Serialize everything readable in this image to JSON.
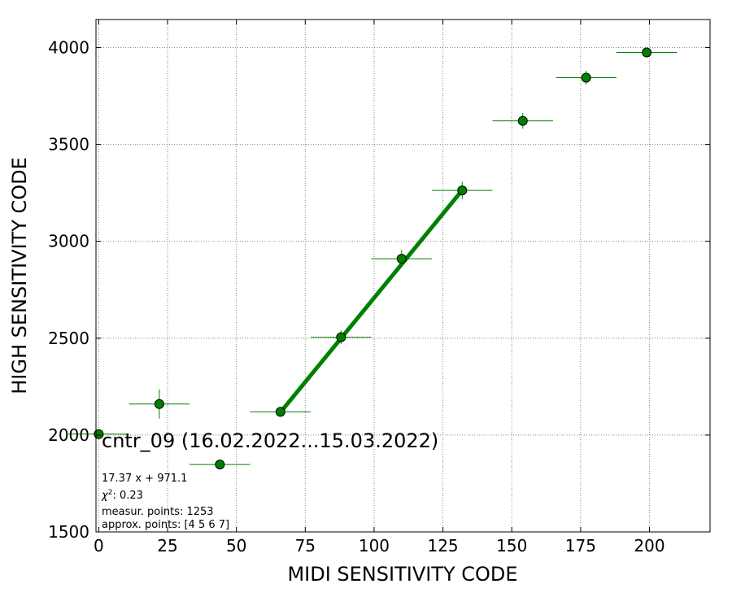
{
  "chart_data": {
    "type": "scatter",
    "xlabel": "MIDI SENSITIVITY CODE",
    "ylabel": "HIGH SENSITIVITY CODE",
    "xlim": [
      -1,
      222
    ],
    "ylim": [
      1500,
      4145
    ],
    "x_ticks": [
      0,
      25,
      50,
      75,
      100,
      125,
      150,
      175,
      200
    ],
    "y_ticks": [
      1500,
      2000,
      2500,
      3000,
      3500,
      4000
    ],
    "grid": true,
    "color": "#008000",
    "series": [
      {
        "points": [
          {
            "x": 0,
            "y": 2005,
            "xerr": 11,
            "yerr": 12
          },
          {
            "x": 22,
            "y": 2160,
            "xerr": 11,
            "yerr": 75
          },
          {
            "x": 44,
            "y": 1848,
            "xerr": 11,
            "yerr": 15
          },
          {
            "x": 66,
            "y": 2120,
            "xerr": 11,
            "yerr": 20
          },
          {
            "x": 88,
            "y": 2505,
            "xerr": 11,
            "yerr": 35
          },
          {
            "x": 110,
            "y": 2910,
            "xerr": 11,
            "yerr": 45
          },
          {
            "x": 132,
            "y": 3263,
            "xerr": 11,
            "yerr": 45
          },
          {
            "x": 154,
            "y": 3622,
            "xerr": 11,
            "yerr": 40
          },
          {
            "x": 177,
            "y": 3845,
            "xerr": 11,
            "yerr": 35
          },
          {
            "x": 199,
            "y": 3975,
            "xerr": 11,
            "yerr": 20
          }
        ]
      }
    ],
    "fit": {
      "slope": 17.37,
      "intercept": 971.1,
      "x_range": [
        66,
        132
      ]
    },
    "title": "cntr_09 (16.02.2022...15.03.2022)",
    "annotations": [
      "17.37 x + 971.1",
      "measur. points: 1253",
      "approx. points: [4 5 6 7]"
    ],
    "chi2_value": ": 0.23"
  }
}
